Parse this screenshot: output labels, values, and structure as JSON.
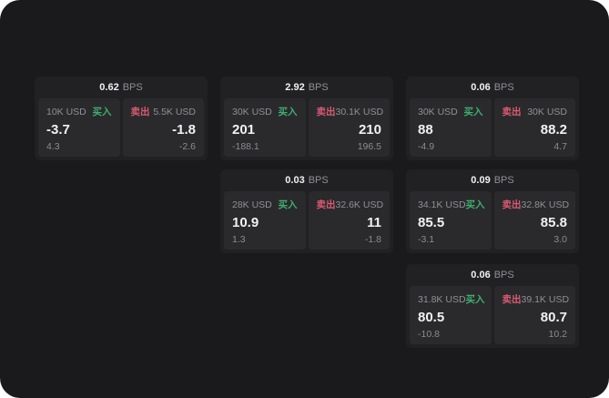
{
  "labels": {
    "bps_suffix": "BPS",
    "buy": "买入",
    "sell": "卖出"
  },
  "colors": {
    "background": "#1a1a1c",
    "card": "#212124",
    "panel": "#2a2a2d",
    "buy_green": "#3fae6e",
    "sell_red": "#da5a71",
    "text_primary": "#f1f1f3",
    "text_secondary": "#8f8f94"
  },
  "cards": [
    {
      "grid": {
        "col": 0,
        "row": 0
      },
      "bps": "0.62",
      "buy": {
        "amount": "10K USD",
        "value": "-3.7",
        "sub": "4.3"
      },
      "sell": {
        "amount": "5.5K USD",
        "value": "-1.8",
        "sub": "-2.6"
      }
    },
    {
      "grid": {
        "col": 1,
        "row": 0
      },
      "bps": "2.92",
      "buy": {
        "amount": "30K USD",
        "value": "201",
        "sub": "-188.1"
      },
      "sell": {
        "amount": "30.1K USD",
        "value": "210",
        "sub": "196.5"
      }
    },
    {
      "grid": {
        "col": 2,
        "row": 0
      },
      "bps": "0.06",
      "buy": {
        "amount": "30K USD",
        "value": "88",
        "sub": "-4.9"
      },
      "sell": {
        "amount": "30K USD",
        "value": "88.2",
        "sub": "4.7"
      }
    },
    {
      "grid": {
        "col": 1,
        "row": 1
      },
      "bps": "0.03",
      "buy": {
        "amount": "28K USD",
        "value": "10.9",
        "sub": "1.3"
      },
      "sell": {
        "amount": "32.6K USD",
        "value": "11",
        "sub": "-1.8"
      }
    },
    {
      "grid": {
        "col": 2,
        "row": 1
      },
      "bps": "0.09",
      "buy": {
        "amount": "34.1K USD",
        "value": "85.5",
        "sub": "-3.1"
      },
      "sell": {
        "amount": "32.8K USD",
        "value": "85.8",
        "sub": "3.0"
      }
    },
    {
      "grid": {
        "col": 2,
        "row": 2
      },
      "bps": "0.06",
      "buy": {
        "amount": "31.8K USD",
        "value": "80.5",
        "sub": "-10.8"
      },
      "sell": {
        "amount": "39.1K USD",
        "value": "80.7",
        "sub": "10.2"
      }
    }
  ]
}
